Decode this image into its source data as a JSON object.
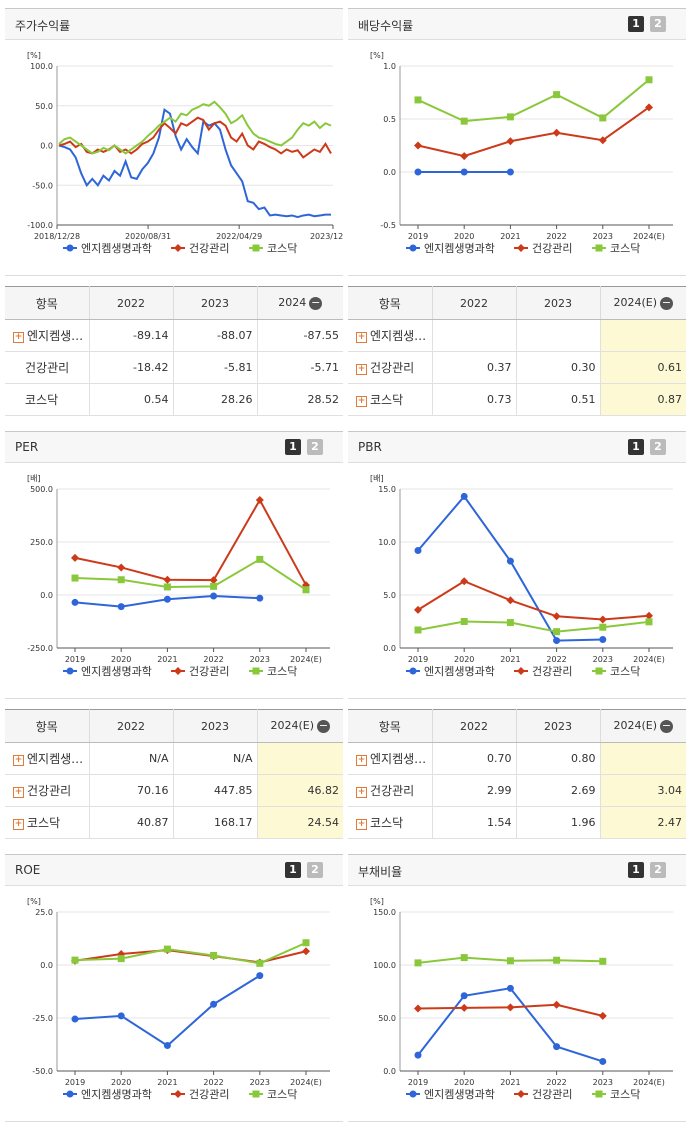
{
  "colors": {
    "s1": "#2e66d9",
    "s2": "#cc3a1a",
    "s3": "#8ac83b",
    "grid": "#e6e6e6",
    "axis": "#333333"
  },
  "legend": [
    "엔지켐생명과학",
    "건강관리",
    "코스닥"
  ],
  "pager": {
    "p1": "1",
    "p2": "2"
  },
  "panels": {
    "stock": {
      "title": "주가수익률",
      "chart_data": {
        "type": "line",
        "unit": "[%]",
        "ylim": [
          -100,
          100
        ],
        "yticks": [
          "100.0",
          "50.0",
          "0.0",
          "-50.0",
          "-100.0"
        ],
        "xticks": [
          "2018/12/28",
          "2020/08/31",
          "2022/04/29",
          "2023/12/28"
        ],
        "series": [
          {
            "name": "엔지켐생명과학",
            "values": [
              0,
              -2,
              -5,
              -15,
              -35,
              -50,
              -42,
              -50,
              -38,
              -44,
              -32,
              -38,
              -20,
              -40,
              -42,
              -30,
              -22,
              -10,
              10,
              45,
              40,
              12,
              -5,
              8,
              -2,
              -10,
              30,
              25,
              28,
              20,
              -5,
              -25,
              -35,
              -45,
              -70,
              -72,
              -80,
              -78,
              -88,
              -87,
              -88,
              -89,
              -88,
              -90,
              -88,
              -87,
              -89,
              -88,
              -87,
              -87
            ]
          },
          {
            "name": "건강관리",
            "values": [
              0,
              2,
              5,
              -2,
              2,
              -8,
              -10,
              -5,
              -8,
              -5,
              0,
              -8,
              -5,
              -10,
              -5,
              2,
              5,
              10,
              20,
              28,
              22,
              15,
              28,
              25,
              30,
              35,
              32,
              20,
              28,
              30,
              25,
              10,
              5,
              15,
              0,
              -5,
              5,
              2,
              -2,
              -5,
              -10,
              -5,
              -8,
              -6,
              -15,
              -10,
              -5,
              -8,
              2,
              -10
            ]
          },
          {
            "name": "코스닥",
            "values": [
              2,
              8,
              10,
              5,
              0,
              -5,
              -10,
              -8,
              -3,
              -6,
              0,
              -5,
              -10,
              -5,
              0,
              5,
              12,
              18,
              25,
              30,
              35,
              30,
              40,
              38,
              45,
              48,
              52,
              50,
              55,
              48,
              40,
              28,
              32,
              38,
              25,
              15,
              10,
              8,
              5,
              2,
              0,
              5,
              10,
              20,
              28,
              25,
              30,
              22,
              28,
              25
            ]
          }
        ]
      }
    },
    "dividend": {
      "title": "배당수익률",
      "chart_data": {
        "type": "line",
        "unit": "[%]",
        "ylim": [
          -0.5,
          1.0
        ],
        "yticks": [
          "1.0",
          "0.5",
          "0.0",
          "-0.5"
        ],
        "categories": [
          "2019",
          "2020",
          "2021",
          "2022",
          "2023",
          "2024(E)"
        ],
        "series": [
          {
            "name": "엔지켐생명과학",
            "values": [
              0,
              0,
              0,
              null,
              null,
              null
            ]
          },
          {
            "name": "건강관리",
            "values": [
              0.25,
              0.15,
              0.29,
              0.37,
              0.3,
              0.61
            ]
          },
          {
            "name": "코스닥",
            "values": [
              0.68,
              0.48,
              0.52,
              0.73,
              0.51,
              0.87
            ]
          }
        ]
      }
    },
    "per": {
      "title": "PER",
      "chart_data": {
        "type": "line",
        "unit": "[배]",
        "ylim": [
          -250,
          500
        ],
        "yticks": [
          "500.0",
          "250.0",
          "0.0",
          "-250.0"
        ],
        "categories": [
          "2019",
          "2020",
          "2021",
          "2022",
          "2023",
          "2024(E)"
        ],
        "series": [
          {
            "name": "엔지켐생명과학",
            "values": [
              -35,
              -55,
              -20,
              -5,
              -15,
              null
            ]
          },
          {
            "name": "건강관리",
            "values": [
              175,
              130,
              72,
              70.16,
              447.85,
              46.82
            ]
          },
          {
            "name": "코스닥",
            "values": [
              80,
              72,
              38,
              40.87,
              168.17,
              24.54
            ]
          }
        ]
      }
    },
    "pbr": {
      "title": "PBR",
      "chart_data": {
        "type": "line",
        "unit": "[배]",
        "ylim": [
          0,
          15
        ],
        "yticks": [
          "15.0",
          "10.0",
          "5.0",
          "0.0"
        ],
        "categories": [
          "2019",
          "2020",
          "2021",
          "2022",
          "2023",
          "2024(E)"
        ],
        "series": [
          {
            "name": "엔지켐생명과학",
            "values": [
              9.2,
              14.3,
              8.2,
              0.7,
              0.8,
              null
            ]
          },
          {
            "name": "건강관리",
            "values": [
              3.6,
              6.3,
              4.5,
              2.99,
              2.69,
              3.04
            ]
          },
          {
            "name": "코스닥",
            "values": [
              1.7,
              2.5,
              2.4,
              1.54,
              1.96,
              2.47
            ]
          }
        ]
      }
    },
    "roe": {
      "title": "ROE",
      "chart_data": {
        "type": "line",
        "unit": "[%]",
        "ylim": [
          -50,
          25
        ],
        "yticks": [
          "25.0",
          "0.0",
          "-25.0",
          "-50.0"
        ],
        "categories": [
          "2019",
          "2020",
          "2021",
          "2022",
          "2023",
          "2024(E)"
        ],
        "series": [
          {
            "name": "엔지켐생명과학",
            "values": [
              -25.5,
              -24,
              -38,
              -18.5,
              -5,
              null
            ]
          },
          {
            "name": "건강관리",
            "values": [
              2,
              5.2,
              7,
              4.2,
              1.2,
              6.5
            ]
          },
          {
            "name": "코스닥",
            "values": [
              2.3,
              3,
              7.5,
              4.5,
              0.8,
              10.5
            ]
          }
        ]
      }
    },
    "debt": {
      "title": "부채비율",
      "chart_data": {
        "type": "line",
        "unit": "[%]",
        "ylim": [
          0,
          150
        ],
        "yticks": [
          "150.0",
          "100.0",
          "50.0",
          "0.0"
        ],
        "categories": [
          "2019",
          "2020",
          "2021",
          "2022",
          "2023",
          "2024(E)"
        ],
        "series": [
          {
            "name": "엔지켐생명과학",
            "values": [
              15,
              71,
              78,
              23,
              9,
              null
            ]
          },
          {
            "name": "건강관리",
            "values": [
              59,
              59.5,
              60,
              62.5,
              52,
              null
            ]
          },
          {
            "name": "코스닥",
            "values": [
              102,
              107,
              104,
              104.5,
              103.5,
              null
            ]
          }
        ]
      }
    }
  },
  "tables": {
    "t1": {
      "head": [
        "항목",
        "2022",
        "2023",
        "2024"
      ],
      "rows": [
        {
          "label": "엔지켐생…",
          "exp": true,
          "v": [
            "-89.14",
            "-88.07",
            "-87.55"
          ]
        },
        {
          "label": "건강관리",
          "exp": false,
          "v": [
            "-18.42",
            "-5.81",
            "-5.71"
          ]
        },
        {
          "label": "코스닥",
          "exp": false,
          "v": [
            "0.54",
            "28.26",
            "28.52"
          ]
        }
      ]
    },
    "t2": {
      "head": [
        "항목",
        "2022",
        "2023",
        "2024(E)"
      ],
      "rows": [
        {
          "label": "엔지켐생…",
          "exp": true,
          "v": [
            "",
            "",
            ""
          ]
        },
        {
          "label": "건강관리",
          "exp": true,
          "v": [
            "0.37",
            "0.30",
            "0.61"
          ]
        },
        {
          "label": "코스닥",
          "exp": true,
          "v": [
            "0.73",
            "0.51",
            "0.87"
          ]
        }
      ]
    },
    "t3": {
      "head": [
        "항목",
        "2022",
        "2023",
        "2024(E)"
      ],
      "rows": [
        {
          "label": "엔지켐생…",
          "exp": true,
          "v": [
            "N/A",
            "N/A",
            ""
          ]
        },
        {
          "label": "건강관리",
          "exp": true,
          "v": [
            "70.16",
            "447.85",
            "46.82"
          ]
        },
        {
          "label": "코스닥",
          "exp": true,
          "v": [
            "40.87",
            "168.17",
            "24.54"
          ]
        }
      ]
    },
    "t4": {
      "head": [
        "항목",
        "2022",
        "2023",
        "2024(E)"
      ],
      "rows": [
        {
          "label": "엔지켐생…",
          "exp": true,
          "v": [
            "0.70",
            "0.80",
            ""
          ]
        },
        {
          "label": "건강관리",
          "exp": true,
          "v": [
            "2.99",
            "2.69",
            "3.04"
          ]
        },
        {
          "label": "코스닥",
          "exp": true,
          "v": [
            "1.54",
            "1.96",
            "2.47"
          ]
        }
      ]
    }
  }
}
